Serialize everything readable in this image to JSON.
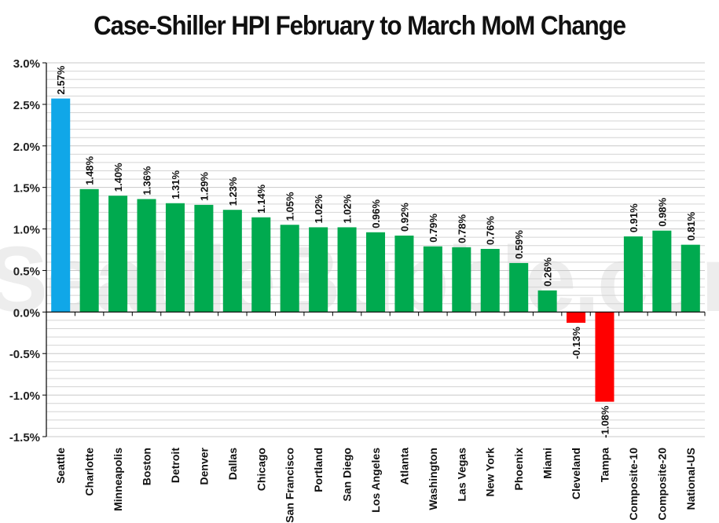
{
  "chart_data": {
    "type": "bar",
    "title": "Case-Shiller HPI February to March MoM Change",
    "xlabel": "",
    "ylabel": "",
    "categories": [
      "Seattle",
      "Charlotte",
      "Minneapolis",
      "Boston",
      "Detroit",
      "Denver",
      "Dallas",
      "Chicago",
      "San Francisco",
      "Portland",
      "San Diego",
      "Los Angeles",
      "Atlanta",
      "Washington",
      "Las Vegas",
      "New York",
      "Phoenix",
      "Miami",
      "Cleveland",
      "Tampa",
      "Composite-10",
      "Composite-20",
      "National-US"
    ],
    "values": [
      2.57,
      1.48,
      1.4,
      1.36,
      1.31,
      1.29,
      1.23,
      1.14,
      1.05,
      1.02,
      1.02,
      0.96,
      0.92,
      0.79,
      0.78,
      0.76,
      0.59,
      0.26,
      -0.13,
      -1.08,
      0.91,
      0.98,
      0.81
    ],
    "data_labels": [
      "2.57%",
      "1.48%",
      "1.40%",
      "1.36%",
      "1.31%",
      "1.29%",
      "1.23%",
      "1.14%",
      "1.05%",
      "1.02%",
      "1.02%",
      "0.96%",
      "0.92%",
      "0.79%",
      "0.78%",
      "0.76%",
      "0.59%",
      "0.26%",
      "-0.13%",
      "-1.08%",
      "0.91%",
      "0.98%",
      "0.81%"
    ],
    "ylim": [
      -1.5,
      3.0
    ],
    "yticks": [
      3.0,
      2.5,
      2.0,
      1.5,
      1.0,
      0.5,
      0.0,
      -0.5,
      -1.0,
      -1.5
    ],
    "ytick_labels": [
      "3.0%",
      "2.5%",
      "2.0%",
      "1.5%",
      "1.0%",
      "0.5%",
      "0.0%",
      "-0.5%",
      "-1.0%",
      "-1.5%"
    ],
    "grid": true,
    "colors": {
      "highlight": "#10a7e8",
      "positive": "#00aa4f",
      "negative": "#ff0000",
      "grid": "#d4d4d4",
      "axis": "#000000"
    },
    "highlight_category": "Seattle"
  },
  "watermark": "SeattleBubble.com"
}
